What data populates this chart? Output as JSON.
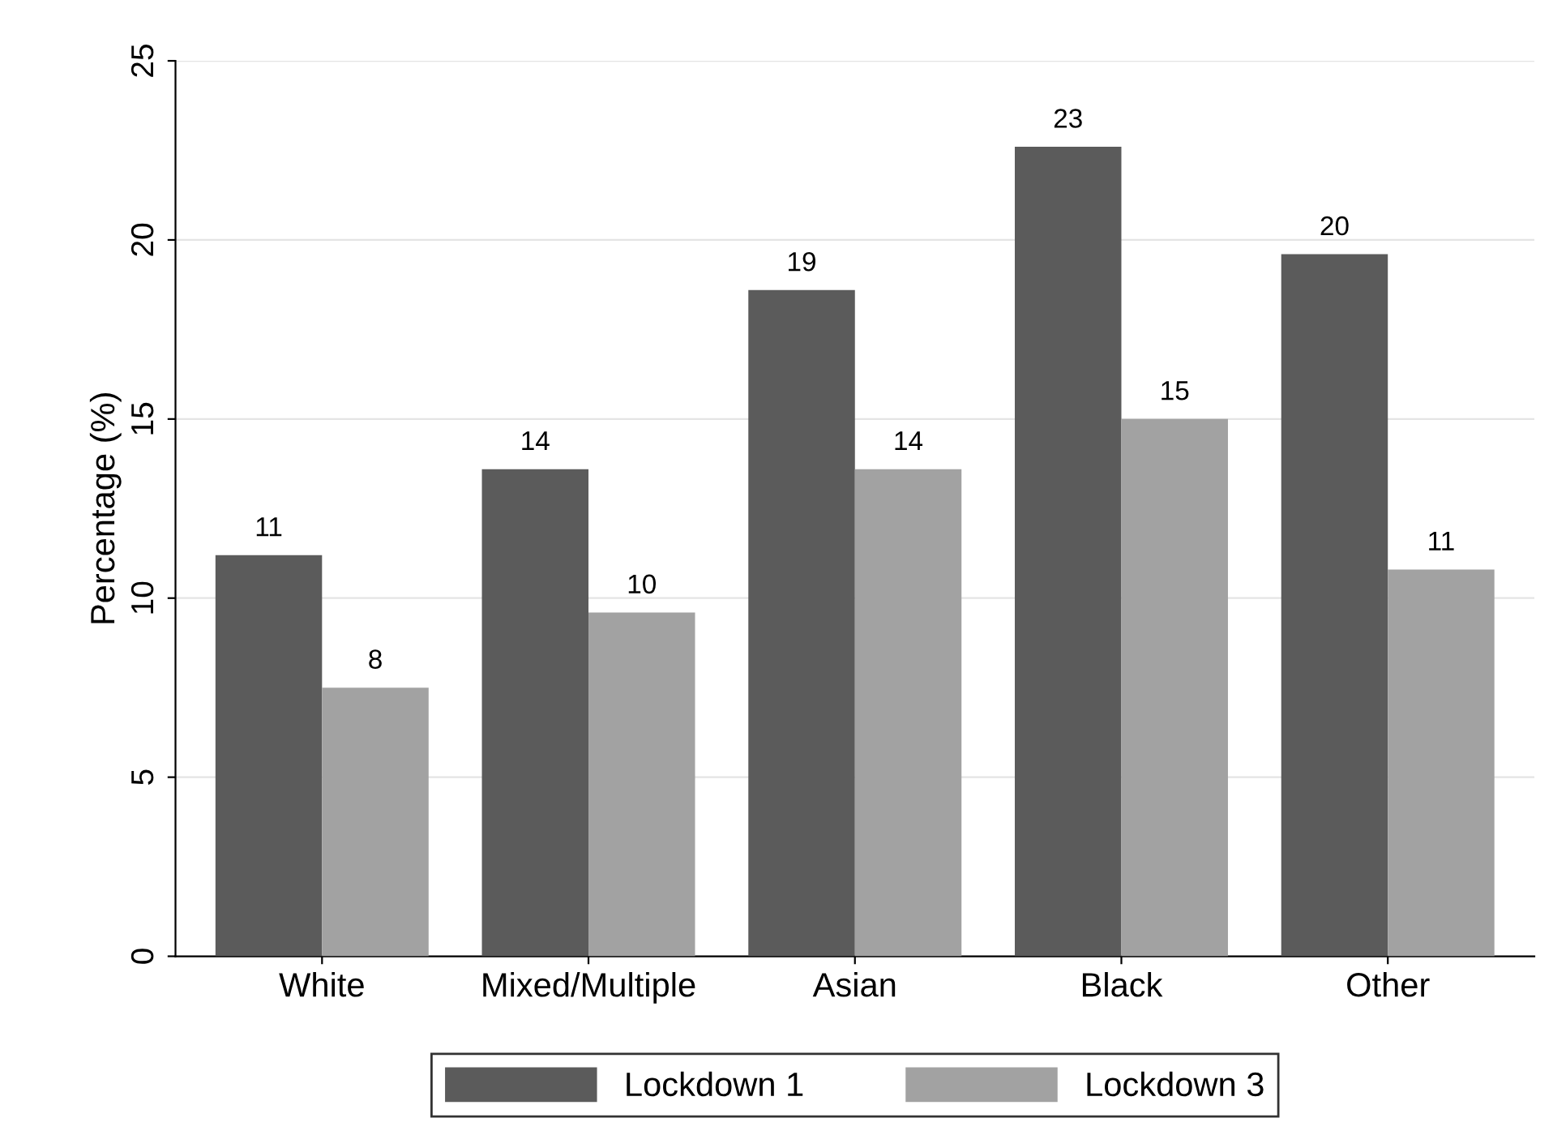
{
  "chart_data": {
    "type": "bar",
    "ylabel": "Percentage (%)",
    "categories": [
      "White",
      "Mixed/Multiple",
      "Asian",
      "Black",
      "Other"
    ],
    "series": [
      {
        "name": "Lockdown 1",
        "color": "#5b5b5b",
        "values": [
          11.2,
          13.6,
          18.6,
          22.6,
          19.6
        ],
        "value_labels": [
          "11",
          "14",
          "19",
          "23",
          "20"
        ]
      },
      {
        "name": "Lockdown 3",
        "color": "#a2a2a2",
        "values": [
          7.5,
          9.6,
          13.6,
          15.0,
          10.8
        ],
        "value_labels": [
          "8",
          "10",
          "14",
          "15",
          "11"
        ]
      }
    ],
    "ylim": [
      0,
      25
    ],
    "yticks": [
      0,
      5,
      10,
      15,
      20,
      25
    ],
    "grid": "y",
    "legend": "bottom"
  }
}
